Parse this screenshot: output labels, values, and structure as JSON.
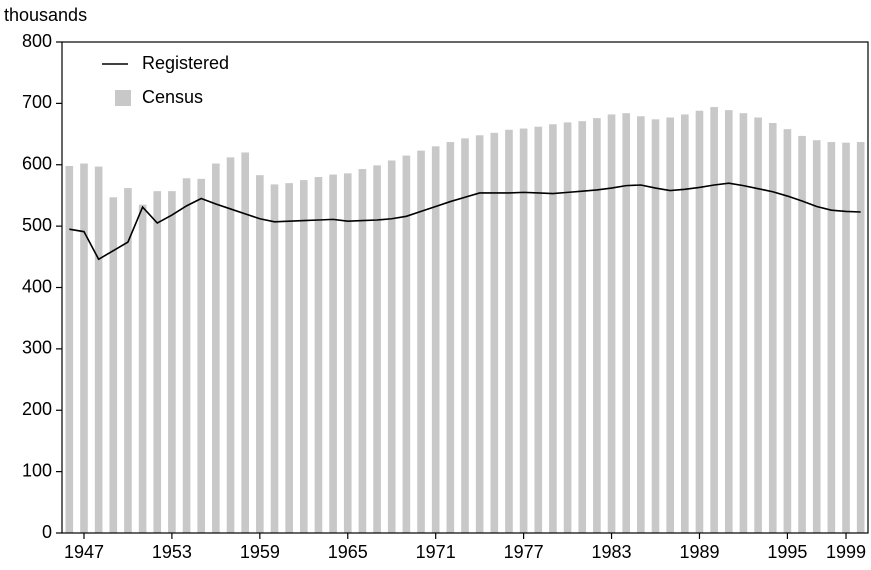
{
  "chart_data": {
    "type": "bar",
    "y_label": "thousands",
    "x": [
      1946,
      1947,
      1948,
      1949,
      1950,
      1951,
      1952,
      1953,
      1954,
      1955,
      1956,
      1957,
      1958,
      1959,
      1960,
      1961,
      1962,
      1963,
      1964,
      1965,
      1966,
      1967,
      1968,
      1969,
      1970,
      1971,
      1972,
      1973,
      1974,
      1975,
      1976,
      1977,
      1978,
      1979,
      1980,
      1981,
      1982,
      1983,
      1984,
      1985,
      1986,
      1987,
      1988,
      1989,
      1990,
      1991,
      1992,
      1993,
      1994,
      1995,
      1996,
      1997,
      1998,
      1999,
      2000
    ],
    "series": [
      {
        "name": "Registered",
        "type": "line",
        "color": "#000000",
        "values": [
          495,
          491,
          446,
          460,
          474,
          531,
          505,
          518,
          533,
          545,
          536,
          528,
          520,
          512,
          507,
          508,
          509,
          510,
          511,
          508,
          509,
          510,
          512,
          516,
          524,
          532,
          540,
          547,
          554,
          554,
          554,
          555,
          554,
          553,
          555,
          557,
          559,
          562,
          566,
          567,
          562,
          558,
          560,
          563,
          567,
          570,
          566,
          561,
          556,
          549,
          541,
          532,
          526,
          524,
          523
        ]
      },
      {
        "name": "Census",
        "type": "bar",
        "color": "#c8c8c8",
        "values": [
          598,
          602,
          597,
          547,
          562,
          535,
          557,
          557,
          578,
          577,
          602,
          612,
          620,
          583,
          568,
          570,
          575,
          580,
          584,
          586,
          593,
          599,
          607,
          615,
          623,
          630,
          637,
          643,
          648,
          652,
          657,
          659,
          662,
          666,
          669,
          671,
          676,
          682,
          684,
          679,
          674,
          677,
          682,
          688,
          694,
          689,
          684,
          677,
          668,
          658,
          647,
          640,
          637,
          636,
          637
        ]
      }
    ],
    "xlim": [
      1945.5,
      2000.5
    ],
    "xticks": [
      1947,
      1953,
      1959,
      1965,
      1971,
      1977,
      1983,
      1989,
      1995,
      1999
    ],
    "ylim": [
      0,
      800
    ],
    "yticks": [
      0,
      100,
      200,
      300,
      400,
      500,
      600,
      700,
      800
    ],
    "legend": "upper left"
  }
}
